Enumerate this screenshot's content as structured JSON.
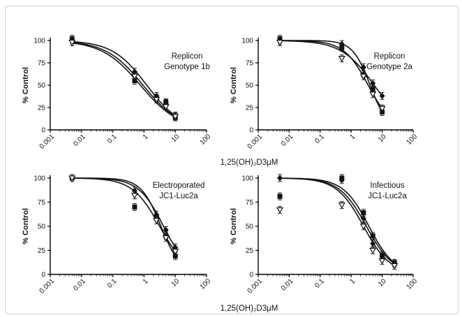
{
  "chart_data": [
    {
      "type": "scatter",
      "annotation": [
        "Replicon",
        "Genotype 1b"
      ],
      "ylabel": "% Control",
      "xscale": "log",
      "xlim": [
        0.001,
        100
      ],
      "ylim": [
        0,
        100
      ],
      "xticks": [
        "0.001",
        "0.01",
        "0.1",
        "1",
        "10",
        "100"
      ],
      "yticks": [
        "0",
        "25",
        "50",
        "75",
        "100"
      ],
      "series": [
        {
          "marker": "square",
          "points": [
            {
              "x": 0.005,
              "y": 102
            },
            {
              "x": 0.5,
              "y": 55
            },
            {
              "x": 2.5,
              "y": 36
            },
            {
              "x": 5,
              "y": 31
            },
            {
              "x": 10,
              "y": 14
            }
          ]
        },
        {
          "marker": "diamond",
          "points": [
            {
              "x": 0.005,
              "y": 100
            },
            {
              "x": 0.5,
              "y": 65
            },
            {
              "x": 2.5,
              "y": 38
            },
            {
              "x": 5,
              "y": 30
            },
            {
              "x": 10,
              "y": 16
            }
          ]
        },
        {
          "marker": "triangle-down",
          "points": [
            {
              "x": 0.005,
              "y": 98
            },
            {
              "x": 0.5,
              "y": 60
            },
            {
              "x": 2.5,
              "y": 34
            },
            {
              "x": 5,
              "y": 26
            },
            {
              "x": 10,
              "y": 15
            }
          ]
        }
      ]
    },
    {
      "type": "scatter",
      "annotation": [
        "Replicon",
        "Genotype 2a"
      ],
      "ylabel": "% Control",
      "xscale": "log",
      "xlim": [
        0.001,
        100
      ],
      "ylim": [
        0,
        100
      ],
      "xticks": [
        "0.001",
        "0.01",
        "0.1",
        "1",
        "10",
        "100"
      ],
      "yticks": [
        "0",
        "25",
        "50",
        "75",
        "100"
      ],
      "series": [
        {
          "marker": "square",
          "points": [
            {
              "x": 0.005,
              "y": 102
            },
            {
              "x": 0.5,
              "y": 92
            },
            {
              "x": 2.5,
              "y": 62
            },
            {
              "x": 5,
              "y": 45
            },
            {
              "x": 10,
              "y": 20
            }
          ]
        },
        {
          "marker": "diamond",
          "points": [
            {
              "x": 0.005,
              "y": 100
            },
            {
              "x": 0.5,
              "y": 96
            },
            {
              "x": 2.5,
              "y": 70
            },
            {
              "x": 5,
              "y": 52
            },
            {
              "x": 10,
              "y": 38
            }
          ]
        },
        {
          "marker": "triangle-down",
          "points": [
            {
              "x": 0.005,
              "y": 98
            },
            {
              "x": 0.5,
              "y": 80
            },
            {
              "x": 2.5,
              "y": 60
            },
            {
              "x": 5,
              "y": 40
            },
            {
              "x": 10,
              "y": 24
            }
          ]
        }
      ]
    },
    {
      "type": "scatter",
      "annotation": [
        "Electroporated",
        "JC1-Luc2a"
      ],
      "ylabel": "% Control",
      "xscale": "log",
      "xlim": [
        0.001,
        100
      ],
      "ylim": [
        0,
        100
      ],
      "xticks": [
        "0.001",
        "0.01",
        "0.1",
        "1",
        "10",
        "100"
      ],
      "yticks": [
        "0",
        "25",
        "50",
        "75",
        "100"
      ],
      "series": [
        {
          "marker": "square",
          "points": [
            {
              "x": 0.005,
              "y": 100
            },
            {
              "x": 0.5,
              "y": 70
            },
            {
              "x": 2.5,
              "y": 59
            },
            {
              "x": 5,
              "y": 40
            },
            {
              "x": 10,
              "y": 19
            }
          ]
        },
        {
          "marker": "diamond",
          "points": [
            {
              "x": 0.005,
              "y": 100
            },
            {
              "x": 0.5,
              "y": 87
            },
            {
              "x": 2.5,
              "y": 62
            },
            {
              "x": 5,
              "y": 46
            },
            {
              "x": 10,
              "y": 28
            }
          ]
        },
        {
          "marker": "triangle-down",
          "points": [
            {
              "x": 0.005,
              "y": 100
            },
            {
              "x": 0.5,
              "y": 82
            },
            {
              "x": 2.5,
              "y": 56
            },
            {
              "x": 5,
              "y": 38
            },
            {
              "x": 10,
              "y": 24
            }
          ]
        }
      ]
    },
    {
      "type": "scatter",
      "annotation": [
        "Infectious",
        "JC1-Luc2a"
      ],
      "ylabel": "% Control",
      "xscale": "log",
      "xlim": [
        0.001,
        100
      ],
      "ylim": [
        0,
        100
      ],
      "xticks": [
        "0.001",
        "0.01",
        "0.1",
        "1",
        "10",
        "100"
      ],
      "yticks": [
        "0",
        "25",
        "50",
        "75",
        "100"
      ],
      "series": [
        {
          "marker": "square",
          "points": [
            {
              "x": 0.005,
              "y": 81
            },
            {
              "x": 0.5,
              "y": 100
            },
            {
              "x": 2.5,
              "y": 64
            },
            {
              "x": 5,
              "y": 40
            },
            {
              "x": 10,
              "y": 20
            },
            {
              "x": 25,
              "y": 12
            }
          ]
        },
        {
          "marker": "diamond",
          "points": [
            {
              "x": 0.005,
              "y": 100
            },
            {
              "x": 0.5,
              "y": 98
            },
            {
              "x": 2.5,
              "y": 58
            },
            {
              "x": 5,
              "y": 32
            },
            {
              "x": 10,
              "y": 18
            },
            {
              "x": 25,
              "y": 11
            }
          ]
        },
        {
          "marker": "triangle-down",
          "points": [
            {
              "x": 0.005,
              "y": 67
            },
            {
              "x": 0.5,
              "y": 72
            },
            {
              "x": 2.5,
              "y": 50
            },
            {
              "x": 5,
              "y": 25
            },
            {
              "x": 10,
              "y": 14
            },
            {
              "x": 25,
              "y": 9
            }
          ]
        }
      ]
    }
  ],
  "xlabels": [
    "1,25(OH)₂D3μM",
    "1,25(OH)₂D3μM"
  ]
}
